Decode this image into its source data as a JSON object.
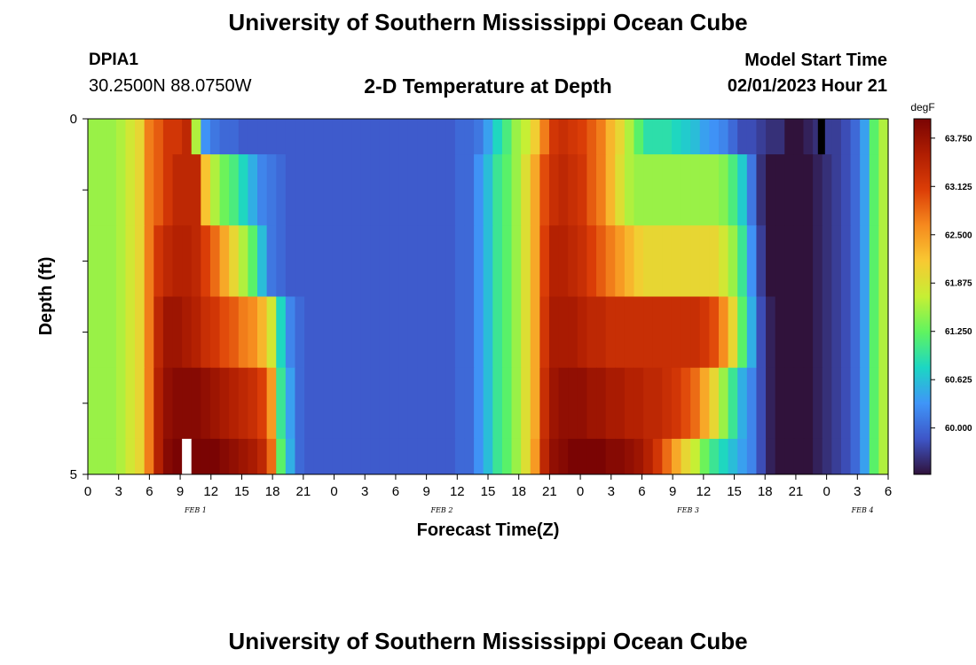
{
  "title": "University of Southern Mississippi Ocean Cube",
  "footer_title": "University of Southern Mississippi Ocean Cube",
  "station": {
    "id": "DPIA1",
    "coords": "30.2500N  88.0750W"
  },
  "subtitle": "2-D Temperature at Depth",
  "model_start": {
    "label": "Model Start Time",
    "value": "02/01/2023 Hour 21"
  },
  "chart_data": {
    "type": "heatmap",
    "xlabel": "Forecast Time(Z)",
    "ylabel": "Depth (ft)",
    "x_ticks": [
      "0",
      "3",
      "6",
      "9",
      "12",
      "15",
      "18",
      "21",
      "0",
      "3",
      "6",
      "9",
      "12",
      "15",
      "18",
      "21",
      "0",
      "3",
      "6",
      "9",
      "12",
      "15",
      "18",
      "21",
      "0",
      "3",
      "6"
    ],
    "y_ticks": [
      "0",
      "5"
    ],
    "y_range": [
      0,
      5
    ],
    "day_labels": [
      "FEB 1",
      "FEB 2",
      "FEB 3",
      "FEB 4"
    ],
    "time_range_hours": [
      0,
      78
    ],
    "units": "degF",
    "colorbar_ticks": [
      "63.750",
      "63.125",
      "62.500",
      "61.875",
      "61.250",
      "60.625",
      "60.000"
    ],
    "color_range": [
      59.4,
      64.0
    ],
    "colormap": [
      "#30123b",
      "#3e56c8",
      "#3f95f8",
      "#1cd6c4",
      "#5ff460",
      "#c6ef34",
      "#f8c932",
      "#f68a1e",
      "#dc3e07",
      "#b01e02",
      "#7a0403"
    ],
    "missing_color": "#ffffff",
    "layers": [
      {
        "depth_range": [
          0,
          0.5
        ],
        "temps": [
          61.5,
          61.5,
          61.5,
          61.6,
          61.8,
          62.0,
          62.7,
          62.9,
          63.2,
          63.2,
          63.4,
          61.6,
          60.3,
          60.1,
          60.0,
          60.0,
          59.9,
          59.9,
          59.9,
          59.9,
          59.9,
          59.9,
          59.9,
          59.9,
          59.9,
          59.9,
          59.9,
          59.9,
          59.9,
          59.9,
          59.9,
          59.9,
          59.9,
          59.9,
          59.9,
          59.9,
          59.9,
          59.9,
          59.9,
          60.0,
          60.0,
          60.1,
          60.4,
          60.8,
          61.1,
          61.5,
          61.7,
          62.1,
          62.7,
          63.2,
          63.3,
          63.2,
          63.1,
          62.9,
          62.7,
          62.3,
          62.0,
          61.6,
          61.2,
          60.9,
          60.9,
          60.9,
          60.8,
          60.7,
          60.6,
          60.4,
          60.3,
          60.2,
          60.0,
          59.8,
          59.8,
          59.7,
          59.6,
          59.6,
          59.4,
          59.4,
          59.5,
          59.6,
          59.7,
          59.7,
          59.8,
          60.0,
          60.4,
          61.2,
          61.6
        ]
      },
      {
        "depth_range": [
          0.5,
          1.5
        ],
        "temps": [
          61.5,
          61.5,
          61.5,
          61.6,
          61.8,
          62.0,
          62.7,
          62.9,
          63.2,
          63.4,
          63.4,
          63.4,
          62.2,
          61.6,
          61.3,
          61.1,
          60.8,
          60.5,
          60.2,
          60.1,
          60.0,
          59.9,
          59.9,
          59.9,
          59.9,
          59.9,
          59.9,
          59.9,
          59.9,
          59.9,
          59.9,
          59.9,
          59.9,
          59.9,
          59.9,
          59.9,
          59.9,
          59.9,
          59.9,
          60.0,
          60.0,
          60.3,
          60.6,
          61.0,
          61.2,
          61.5,
          61.9,
          62.4,
          63.0,
          63.3,
          63.4,
          63.3,
          63.2,
          62.9,
          62.7,
          62.3,
          61.9,
          61.6,
          61.5,
          61.5,
          61.5,
          61.5,
          61.5,
          61.5,
          61.5,
          61.5,
          61.5,
          61.4,
          61.1,
          60.7,
          60.1,
          59.6,
          59.4,
          59.4,
          59.4,
          59.4,
          59.4,
          59.5,
          59.6,
          59.7,
          59.8,
          60.0,
          60.4,
          61.2,
          61.6
        ]
      },
      {
        "depth_range": [
          1.5,
          2.5
        ],
        "temps": [
          61.5,
          61.5,
          61.5,
          61.6,
          61.8,
          62.0,
          62.7,
          63.2,
          63.4,
          63.5,
          63.5,
          63.4,
          63.1,
          62.8,
          62.4,
          62.0,
          61.6,
          61.2,
          60.6,
          60.1,
          60.0,
          59.9,
          59.9,
          59.9,
          59.9,
          59.9,
          59.9,
          59.9,
          59.9,
          59.9,
          59.9,
          59.9,
          59.9,
          59.9,
          59.9,
          59.9,
          59.9,
          59.9,
          59.9,
          60.0,
          60.0,
          60.3,
          60.6,
          61.0,
          61.2,
          61.5,
          61.9,
          62.4,
          63.1,
          63.5,
          63.5,
          63.4,
          63.3,
          63.1,
          62.9,
          62.7,
          62.5,
          62.3,
          62.1,
          62.0,
          62.0,
          62.0,
          62.0,
          62.0,
          62.0,
          62.0,
          62.0,
          61.8,
          61.5,
          61.0,
          60.3,
          59.7,
          59.4,
          59.4,
          59.4,
          59.4,
          59.4,
          59.5,
          59.6,
          59.7,
          59.8,
          60.0,
          60.4,
          61.2,
          61.6
        ]
      },
      {
        "depth_range": [
          2.5,
          3.5
        ],
        "temps": [
          61.5,
          61.5,
          61.5,
          61.6,
          61.8,
          62.0,
          62.7,
          63.4,
          63.7,
          63.7,
          63.6,
          63.5,
          63.3,
          63.2,
          63.0,
          62.9,
          62.7,
          62.6,
          62.3,
          61.8,
          60.8,
          60.2,
          60.0,
          59.9,
          59.9,
          59.9,
          59.9,
          59.9,
          59.9,
          59.9,
          59.9,
          59.9,
          59.9,
          59.9,
          59.9,
          59.9,
          59.9,
          59.9,
          59.9,
          60.0,
          60.0,
          60.3,
          60.6,
          61.0,
          61.2,
          61.5,
          61.9,
          62.4,
          63.2,
          63.6,
          63.6,
          63.6,
          63.5,
          63.4,
          63.4,
          63.3,
          63.3,
          63.3,
          63.3,
          63.3,
          63.3,
          63.3,
          63.3,
          63.3,
          63.3,
          63.2,
          63.0,
          62.6,
          62.0,
          61.2,
          60.5,
          59.8,
          59.5,
          59.4,
          59.4,
          59.4,
          59.4,
          59.5,
          59.6,
          59.7,
          59.8,
          60.0,
          60.4,
          61.2,
          61.6
        ]
      },
      {
        "depth_range": [
          3.5,
          4.5
        ],
        "temps": [
          61.5,
          61.5,
          61.5,
          61.6,
          61.8,
          62.0,
          62.7,
          63.5,
          63.8,
          63.9,
          63.9,
          63.9,
          63.8,
          63.7,
          63.6,
          63.5,
          63.4,
          63.3,
          63.1,
          62.5,
          61.0,
          60.4,
          60.0,
          59.9,
          59.9,
          59.9,
          59.9,
          59.9,
          59.9,
          59.9,
          59.9,
          59.9,
          59.9,
          59.9,
          59.9,
          59.9,
          59.9,
          59.9,
          59.9,
          60.0,
          60.0,
          60.3,
          60.6,
          61.0,
          61.2,
          61.5,
          61.9,
          62.4,
          63.3,
          63.7,
          63.8,
          63.8,
          63.8,
          63.7,
          63.7,
          63.6,
          63.6,
          63.5,
          63.5,
          63.4,
          63.4,
          63.3,
          63.2,
          63.0,
          62.8,
          62.4,
          62.0,
          61.5,
          61.0,
          60.5,
          60.2,
          59.8,
          59.5,
          59.4,
          59.4,
          59.4,
          59.4,
          59.5,
          59.6,
          59.7,
          59.8,
          60.0,
          60.4,
          61.2,
          61.6
        ]
      },
      {
        "depth_range": [
          4.5,
          5.0
        ],
        "temps": [
          61.5,
          61.5,
          61.5,
          61.6,
          61.8,
          62.0,
          62.7,
          63.5,
          63.9,
          64.0,
          null,
          64.0,
          64.0,
          64.0,
          63.9,
          63.8,
          63.7,
          63.6,
          63.4,
          62.8,
          61.2,
          60.5,
          60.0,
          59.9,
          59.9,
          59.9,
          59.9,
          59.9,
          59.9,
          59.9,
          59.9,
          59.9,
          59.9,
          59.9,
          59.9,
          59.9,
          59.9,
          59.9,
          59.9,
          60.0,
          60.0,
          60.3,
          60.6,
          61.0,
          61.2,
          61.5,
          61.9,
          62.5,
          63.4,
          63.8,
          63.9,
          64.0,
          64.0,
          64.0,
          64.0,
          63.9,
          63.9,
          63.8,
          63.7,
          63.5,
          63.2,
          62.8,
          62.4,
          62.0,
          61.7,
          61.3,
          61.0,
          60.8,
          60.6,
          60.4,
          60.2,
          59.8,
          59.5,
          59.4,
          59.4,
          59.4,
          59.4,
          59.5,
          59.6,
          59.7,
          59.8,
          60.0,
          60.4,
          61.2,
          61.6
        ]
      }
    ],
    "black_marker": {
      "hour": 71.5,
      "depth_range": [
        0,
        0.5
      ]
    }
  }
}
